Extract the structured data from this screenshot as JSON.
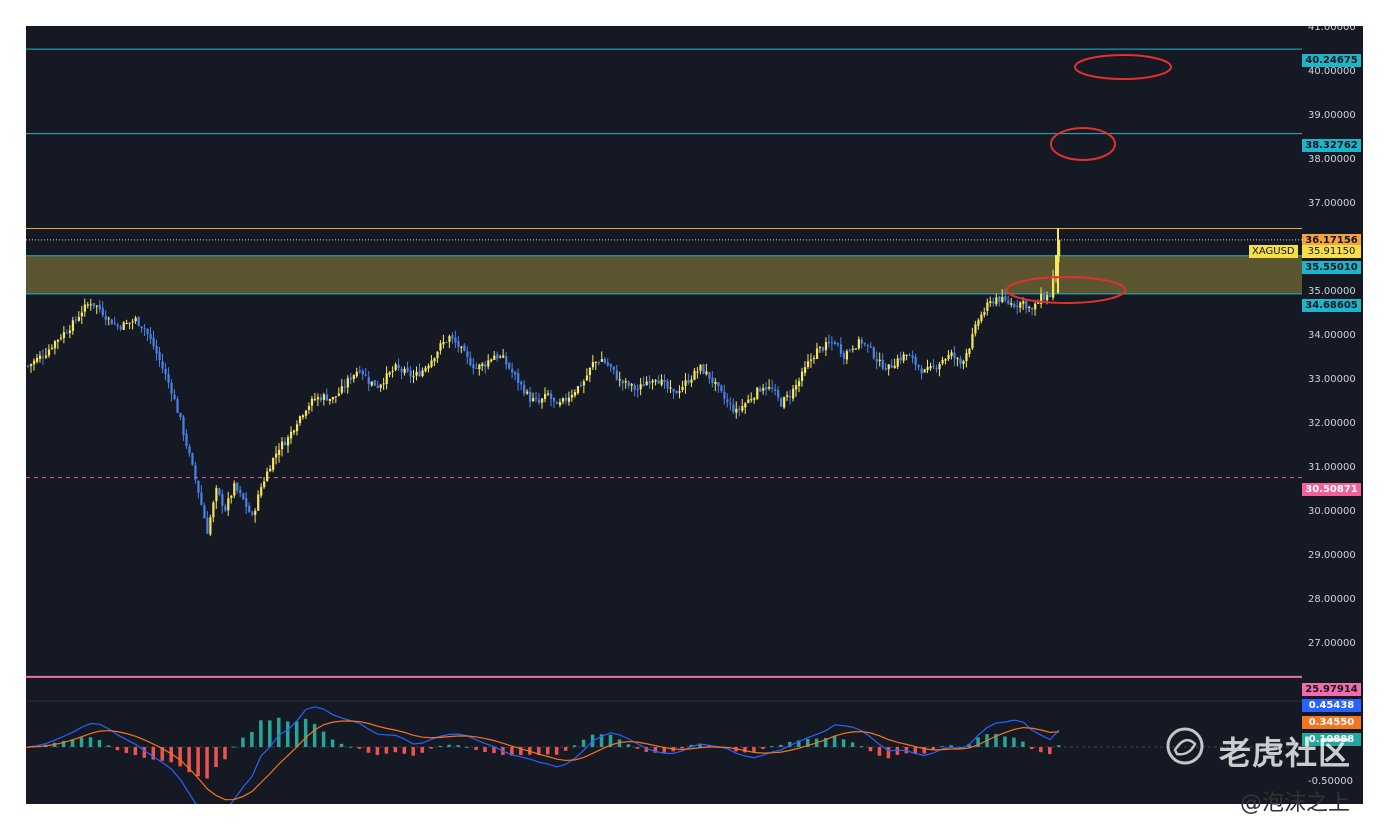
{
  "symbol": "XAGUSD",
  "current_price": "35.91150",
  "price_axis_ticks": [
    "41.00000",
    "40.00000",
    "39.00000",
    "38.00000",
    "37.00000",
    "35.00000",
    "34.00000",
    "33.00000",
    "32.00000",
    "31.00000",
    "30.00000",
    "29.00000",
    "28.00000",
    "27.00000"
  ],
  "level_labels": {
    "l40": "40.24675",
    "l38": "38.32762",
    "l36": "36.17156",
    "l355": "35.55010",
    "l346": "34.68605",
    "l305": "30.50871",
    "l259": "25.97914"
  },
  "macd_labels": {
    "macd": "0.45438",
    "signal": "0.34550",
    "hist": "0.10888",
    "low_tick": "-0.50000"
  },
  "watermark": {
    "text": "老虎社区",
    "author": "@泡沫之上"
  },
  "colors": {
    "background": "#151924",
    "up_candle": "#f6e75e",
    "down_candle": "#4b82e8",
    "resistance_line": "#1fb5c9",
    "top_line": "#f7a33c",
    "zone_fill": "#5b5530",
    "dashed_level": "#f0609a",
    "bottom_line": "#f06cab",
    "circle": "#e0312d"
  },
  "chart_data": {
    "type": "candlestick",
    "y_range": [
      26.2,
      41.5
    ],
    "levels": [
      40.24675,
      38.32762,
      36.17156,
      35.5501,
      34.68605,
      30.50871,
      25.97914
    ],
    "close_series": [
      33.05,
      33.2,
      33.35,
      33.6,
      33.8,
      34.0,
      34.3,
      34.5,
      34.35,
      34.1,
      33.95,
      34.0,
      34.1,
      33.9,
      33.5,
      33.0,
      32.5,
      31.8,
      31.0,
      30.2,
      29.3,
      30.2,
      29.8,
      30.3,
      30.0,
      29.6,
      30.3,
      30.8,
      31.2,
      31.4,
      31.8,
      32.1,
      32.3,
      32.35,
      32.3,
      32.5,
      32.8,
      33.0,
      32.7,
      32.6,
      32.8,
      33.0,
      32.9,
      32.8,
      32.95,
      33.2,
      33.5,
      33.7,
      33.5,
      33.2,
      33.0,
      33.1,
      33.3,
      33.2,
      32.9,
      32.6,
      32.3,
      32.2,
      32.4,
      32.1,
      32.3,
      32.5,
      32.7,
      33.1,
      33.2,
      33.0,
      32.7,
      32.6,
      32.5,
      32.7,
      32.8,
      32.6,
      32.4,
      32.6,
      32.8,
      33.0,
      32.8,
      32.5,
      32.2,
      32.0,
      32.2,
      32.4,
      32.6,
      32.5,
      32.2,
      32.4,
      32.7,
      33.1,
      33.4,
      33.5,
      33.6,
      33.3,
      33.5,
      33.6,
      33.4,
      33.1,
      33.0,
      33.2,
      33.3,
      33.1,
      32.9,
      33.0,
      33.2,
      33.3,
      33.1,
      33.5,
      34.1,
      34.4,
      34.6,
      34.5,
      34.45,
      34.5,
      34.3,
      34.6,
      34.65,
      35.91
    ]
  }
}
